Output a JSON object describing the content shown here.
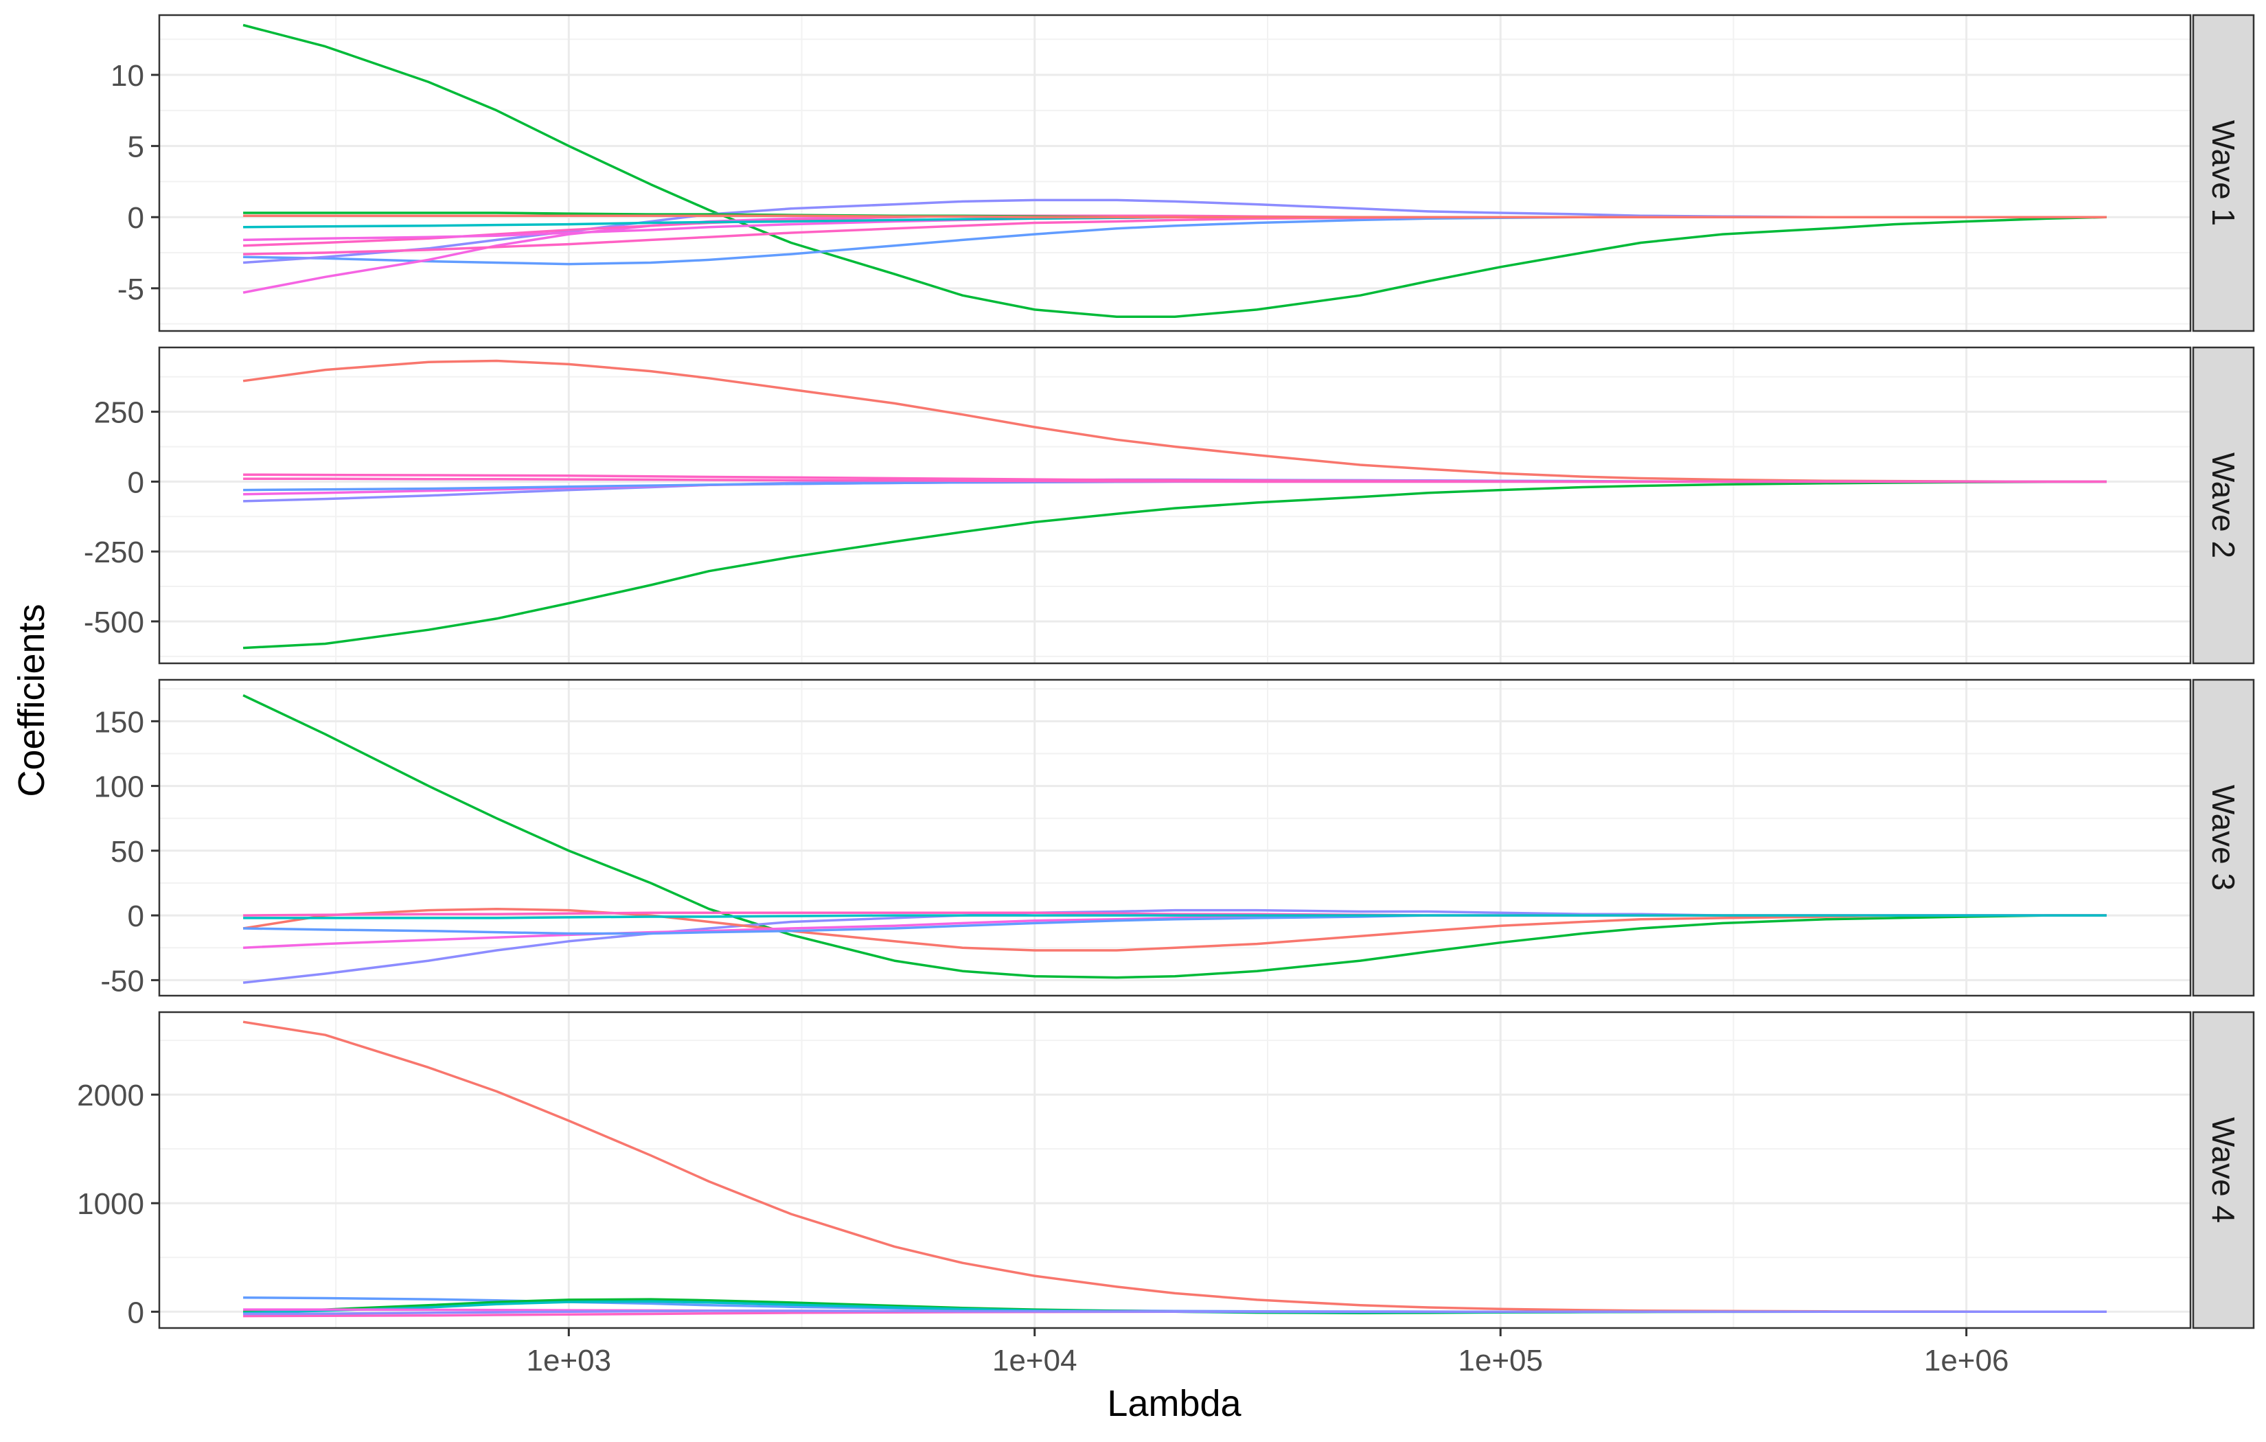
{
  "chart_data": {
    "type": "line",
    "title": "",
    "xlabel": "Lambda",
    "ylabel": "Coefficients",
    "x_scale": "log10",
    "xlim": [
      200,
      2000000
    ],
    "x_ticks": [
      1000,
      10000,
      100000,
      1000000
    ],
    "x_tick_labels": [
      "1e+03",
      "1e+04",
      "1e+05",
      "1e+06"
    ],
    "x": [
      200,
      300,
      500,
      700,
      1000,
      1500,
      2000,
      3000,
      5000,
      7000,
      10000,
      15000,
      20000,
      30000,
      50000,
      70000,
      100000,
      150000,
      200000,
      300000,
      500000,
      700000,
      1000000,
      1500000,
      2000000
    ],
    "grid": true,
    "legend": "none",
    "colors": {
      "red": "#F8766D",
      "green": "#00BA38",
      "teal": "#00BFC4",
      "blue": "#619CFF",
      "purple": "#8C8CFF",
      "pink": "#F564E3",
      "magenta": "#FF61C3"
    },
    "panels": [
      {
        "strip": "Wave 1",
        "ylim": [
          -8,
          14.2
        ],
        "y_ticks": [
          -5,
          0,
          5,
          10
        ],
        "y_tick_labels": [
          "-5",
          "0",
          "5",
          "10"
        ],
        "series": [
          {
            "color": "green",
            "values": [
              13.5,
              12,
              9.5,
              7.5,
              5,
              2.3,
              0.5,
              -1.8,
              -4,
              -5.5,
              -6.5,
              -7.0,
              -7.0,
              -6.5,
              -5.5,
              -4.5,
              -3.5,
              -2.5,
              -1.8,
              -1.2,
              -0.8,
              -0.5,
              -0.3,
              -0.1,
              0
            ]
          },
          {
            "color": "blue",
            "values": [
              -2.8,
              -2.9,
              -3.1,
              -3.2,
              -3.3,
              -3.2,
              -3.0,
              -2.6,
              -2.0,
              -1.6,
              -1.2,
              -0.8,
              -0.6,
              -0.4,
              -0.2,
              -0.1,
              -0.05,
              0,
              0,
              0,
              0,
              0,
              0,
              0,
              0
            ]
          },
          {
            "color": "purple",
            "values": [
              -3.2,
              -2.8,
              -2.2,
              -1.6,
              -1.0,
              -0.3,
              0.2,
              0.6,
              0.9,
              1.1,
              1.2,
              1.2,
              1.1,
              0.9,
              0.6,
              0.4,
              0.3,
              0.2,
              0.1,
              0.05,
              0,
              0,
              0,
              0,
              0
            ]
          },
          {
            "color": "pink",
            "values": [
              -5.3,
              -4.2,
              -3.0,
              -2.0,
              -1.2,
              -0.6,
              -0.3,
              -0.1,
              0,
              0.1,
              0.1,
              0.1,
              0.05,
              0,
              0,
              0,
              0,
              0,
              0,
              0,
              0,
              0,
              0,
              0,
              0
            ]
          },
          {
            "color": "magenta",
            "values": [
              -2.0,
              -1.8,
              -1.5,
              -1.2,
              -0.9,
              -0.6,
              -0.4,
              -0.2,
              0,
              0.1,
              0.1,
              0.1,
              0.1,
              0.05,
              0,
              0,
              0,
              0,
              0,
              0,
              0,
              0,
              0,
              0,
              0
            ]
          },
          {
            "color": "pink",
            "values": [
              -1.6,
              -1.5,
              -1.4,
              -1.3,
              -1.1,
              -0.9,
              -0.7,
              -0.5,
              -0.3,
              -0.2,
              -0.1,
              -0.05,
              0,
              0,
              0,
              0,
              0,
              0,
              0,
              0,
              0,
              0,
              0,
              0,
              0
            ]
          },
          {
            "color": "magenta",
            "values": [
              -2.6,
              -2.5,
              -2.3,
              -2.1,
              -1.9,
              -1.6,
              -1.4,
              -1.1,
              -0.8,
              -0.6,
              -0.4,
              -0.3,
              -0.2,
              -0.1,
              -0.05,
              0,
              0,
              0,
              0,
              0,
              0,
              0,
              0,
              0,
              0
            ]
          },
          {
            "color": "teal",
            "values": [
              -0.7,
              -0.65,
              -0.6,
              -0.55,
              -0.5,
              -0.4,
              -0.35,
              -0.3,
              -0.2,
              -0.15,
              -0.1,
              -0.05,
              0,
              0,
              0,
              0,
              0,
              0,
              0,
              0,
              0,
              0,
              0,
              0,
              0
            ]
          },
          {
            "color": "green",
            "values": [
              0.3,
              0.3,
              0.3,
              0.3,
              0.25,
              0.2,
              0.2,
              0.15,
              0.1,
              0.1,
              0.05,
              0,
              0,
              0,
              0,
              0,
              0,
              0,
              0,
              0,
              0,
              0,
              0,
              0,
              0
            ]
          },
          {
            "color": "red",
            "values": [
              0.1,
              0.1,
              0.1,
              0.1,
              0.1,
              0.1,
              0.1,
              0.1,
              0.05,
              0.05,
              0,
              0,
              0,
              0,
              0,
              0,
              0,
              0,
              0,
              0,
              0,
              0,
              0,
              0,
              0
            ]
          }
        ]
      },
      {
        "strip": "Wave 2",
        "ylim": [
          -650,
          480
        ],
        "y_ticks": [
          -500,
          -250,
          0,
          250
        ],
        "y_tick_labels": [
          "-500",
          "-250",
          "0",
          "250"
        ],
        "series": [
          {
            "color": "red",
            "values": [
              360,
              400,
              428,
              432,
              420,
              395,
              370,
              330,
              280,
              240,
              195,
              150,
              125,
              95,
              60,
              45,
              30,
              18,
              12,
              7,
              3,
              2,
              1,
              0,
              0
            ]
          },
          {
            "color": "green",
            "values": [
              -595,
              -580,
              -530,
              -490,
              -435,
              -370,
              -320,
              -270,
              -215,
              -180,
              -145,
              -115,
              -95,
              -75,
              -55,
              -40,
              -30,
              -20,
              -15,
              -10,
              -6,
              -4,
              -2,
              -1,
              0
            ]
          },
          {
            "color": "purple",
            "values": [
              -70,
              -62,
              -50,
              -40,
              -30,
              -20,
              -12,
              -5,
              0,
              4,
              6,
              7,
              7,
              6,
              5,
              4,
              3,
              2,
              1,
              0,
              0,
              0,
              0,
              0,
              0
            ]
          },
          {
            "color": "magenta",
            "values": [
              25,
              24,
              23,
              22,
              21,
              19,
              17,
              15,
              12,
              10,
              8,
              6,
              5,
              4,
              3,
              2,
              1,
              0,
              0,
              0,
              0,
              0,
              0,
              0,
              0
            ]
          },
          {
            "color": "pink",
            "values": [
              -45,
              -40,
              -33,
              -28,
              -22,
              -16,
              -12,
              -8,
              -5,
              -3,
              -2,
              -1,
              0,
              0,
              0,
              0,
              0,
              0,
              0,
              0,
              0,
              0,
              0,
              0,
              0
            ]
          },
          {
            "color": "blue",
            "values": [
              -30,
              -28,
              -25,
              -22,
              -18,
              -14,
              -11,
              -8,
              -5,
              -3,
              -2,
              -1,
              0,
              0,
              0,
              0,
              0,
              0,
              0,
              0,
              0,
              0,
              0,
              0,
              0
            ]
          },
          {
            "color": "magenta",
            "values": [
              10,
              10,
              9,
              9,
              8,
              7,
              6,
              5,
              4,
              3,
              2,
              1,
              1,
              0,
              0,
              0,
              0,
              0,
              0,
              0,
              0,
              0,
              0,
              0,
              0
            ]
          }
        ]
      },
      {
        "strip": "Wave 3",
        "ylim": [
          -62,
          182
        ],
        "y_ticks": [
          -50,
          0,
          50,
          100,
          150
        ],
        "y_tick_labels": [
          "-50",
          "0",
          "50",
          "100",
          "150"
        ],
        "series": [
          {
            "color": "green",
            "values": [
              170,
              140,
              100,
              75,
              50,
              25,
              5,
              -15,
              -35,
              -43,
              -47,
              -48,
              -47,
              -43,
              -35,
              -28,
              -21,
              -14,
              -10,
              -6,
              -3,
              -2,
              -1,
              0,
              0
            ]
          },
          {
            "color": "purple",
            "values": [
              -52,
              -45,
              -35,
              -27,
              -20,
              -14,
              -10,
              -5,
              -2,
              0,
              2,
              3,
              4,
              4,
              3,
              3,
              2,
              1,
              1,
              0,
              0,
              0,
              0,
              0,
              0
            ]
          },
          {
            "color": "red",
            "values": [
              -10,
              0,
              4,
              5,
              4,
              0,
              -5,
              -12,
              -20,
              -25,
              -27,
              -27,
              -25,
              -22,
              -16,
              -12,
              -8,
              -5,
              -3,
              -2,
              -1,
              0,
              0,
              0,
              0
            ]
          },
          {
            "color": "pink",
            "values": [
              -25,
              -22,
              -19,
              -17,
              -15,
              -13,
              -12,
              -10,
              -8,
              -6,
              -4,
              -3,
              -2,
              -1,
              0,
              0,
              0,
              0,
              0,
              0,
              0,
              0,
              0,
              0,
              0
            ]
          },
          {
            "color": "blue",
            "values": [
              -10,
              -11,
              -12,
              -13,
              -14,
              -14,
              -13,
              -12,
              -10,
              -8,
              -6,
              -4,
              -3,
              -2,
              -1,
              0,
              0,
              0,
              0,
              0,
              0,
              0,
              0,
              0,
              0
            ]
          },
          {
            "color": "magenta",
            "values": [
              0,
              0.5,
              1,
              1,
              1.5,
              2,
              2,
              2,
              2,
              2,
              2,
              1.5,
              1,
              1,
              0.5,
              0,
              0,
              0,
              0,
              0,
              0,
              0,
              0,
              0,
              0
            ]
          },
          {
            "color": "teal",
            "values": [
              -2,
              -2,
              -2,
              -2,
              -1.5,
              -1,
              -1,
              -0.5,
              0,
              0,
              0,
              0,
              0,
              0,
              0,
              0,
              0,
              0,
              0,
              0,
              0,
              0,
              0,
              0,
              0
            ]
          }
        ]
      },
      {
        "strip": "Wave 4",
        "ylim": [
          -150,
          2760
        ],
        "y_ticks": [
          0,
          1000,
          2000
        ],
        "y_tick_labels": [
          "0",
          "1000",
          "2000"
        ],
        "series": [
          {
            "color": "red",
            "values": [
              2670,
              2550,
              2250,
              2030,
              1760,
              1440,
              1200,
              900,
              600,
              450,
              330,
              230,
              170,
              110,
              60,
              40,
              25,
              15,
              10,
              6,
              3,
              2,
              1,
              0,
              0
            ]
          },
          {
            "color": "blue",
            "values": [
              130,
              125,
              115,
              105,
              90,
              75,
              60,
              45,
              30,
              20,
              15,
              10,
              7,
              4,
              2,
              1,
              0,
              0,
              0,
              0,
              0,
              0,
              0,
              0,
              0
            ]
          },
          {
            "color": "green",
            "values": [
              0,
              20,
              60,
              90,
              110,
              115,
              105,
              85,
              55,
              35,
              20,
              8,
              0,
              -8,
              -12,
              -10,
              -6,
              -4,
              -2,
              -1,
              0,
              0,
              0,
              0,
              0
            ]
          },
          {
            "color": "teal",
            "values": [
              -10,
              10,
              40,
              70,
              90,
              95,
              85,
              65,
              40,
              25,
              12,
              5,
              0,
              -3,
              -5,
              -4,
              -3,
              -2,
              -1,
              0,
              0,
              0,
              0,
              0,
              0
            ]
          },
          {
            "color": "magenta",
            "values": [
              -40,
              -38,
              -35,
              -30,
              -25,
              -20,
              -15,
              -10,
              -6,
              -4,
              -2,
              -1,
              0,
              0,
              0,
              0,
              0,
              0,
              0,
              0,
              0,
              0,
              0,
              0,
              0
            ]
          },
          {
            "color": "pink",
            "values": [
              20,
              20,
              18,
              16,
              14,
              12,
              10,
              8,
              6,
              4,
              3,
              2,
              1,
              0,
              0,
              0,
              0,
              0,
              0,
              0,
              0,
              0,
              0,
              0,
              0
            ]
          },
          {
            "color": "purple",
            "values": [
              -20,
              -18,
              -10,
              -5,
              0,
              5,
              8,
              8,
              6,
              5,
              3,
              2,
              1,
              0,
              0,
              0,
              0,
              0,
              0,
              0,
              0,
              0,
              0,
              0,
              0
            ]
          }
        ]
      }
    ]
  }
}
